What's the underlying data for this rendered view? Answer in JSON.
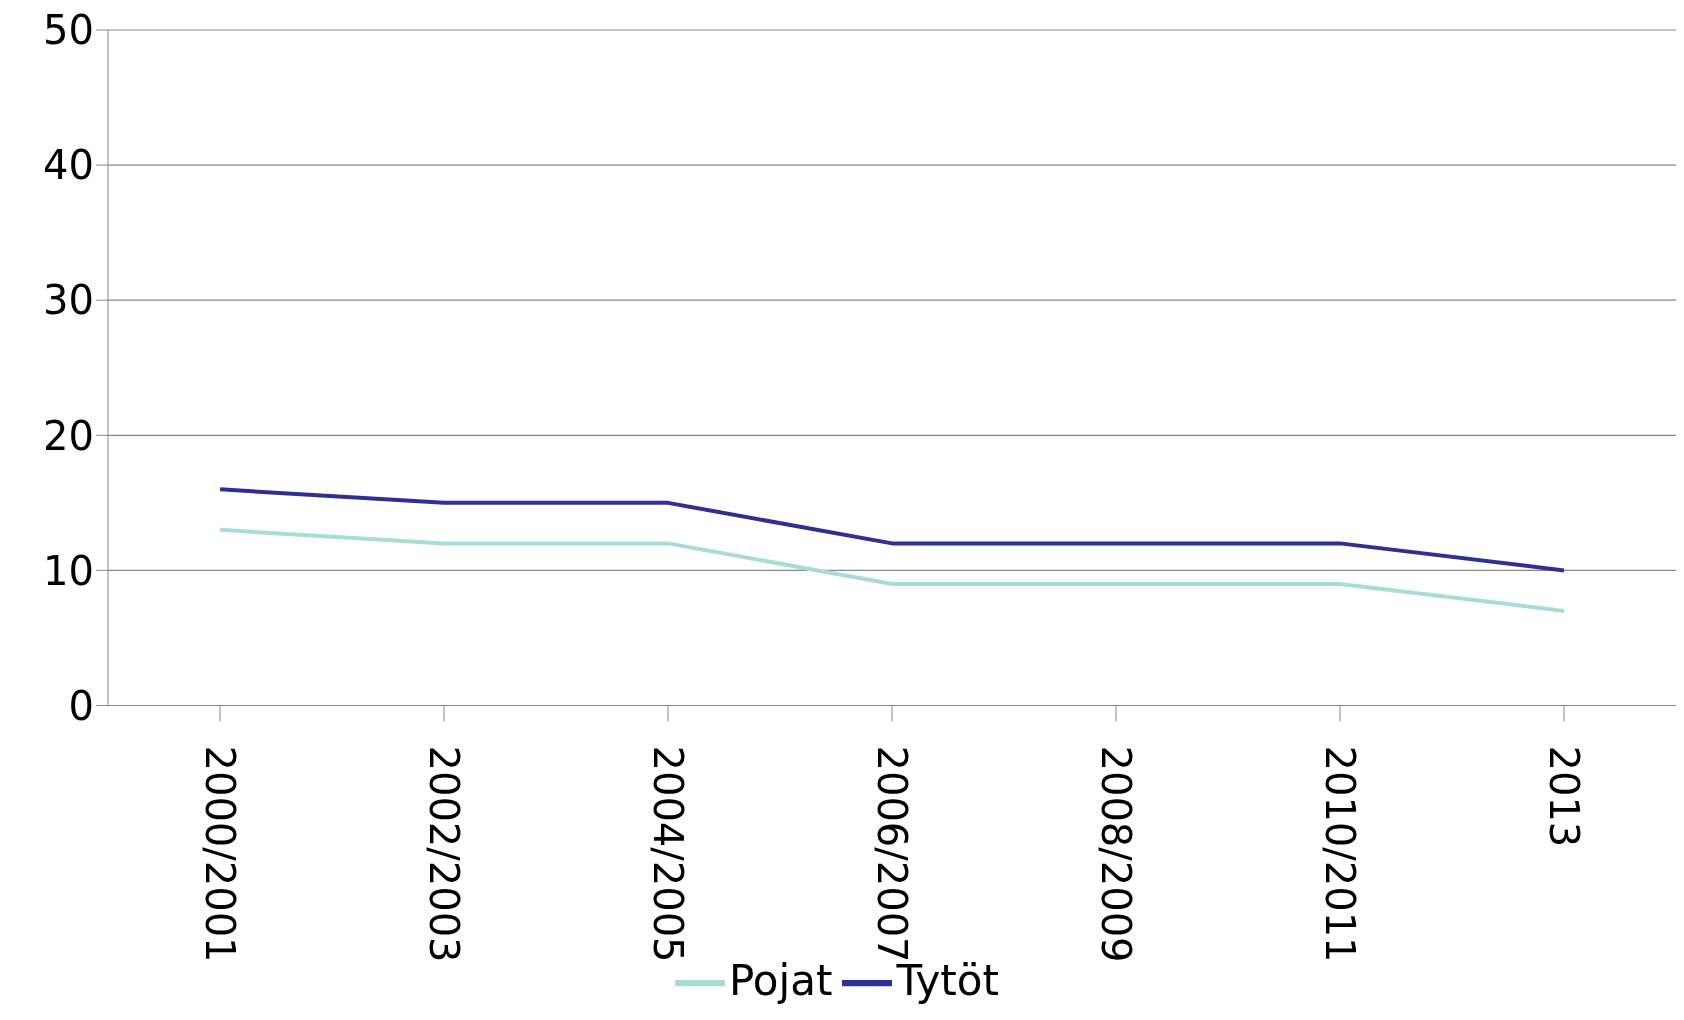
{
  "chart_data": {
    "type": "line",
    "categories": [
      "2000/2001",
      "2002/2003",
      "2004/2005",
      "2006/2007",
      "2008/2009",
      "2010/2011",
      "2013"
    ],
    "series": [
      {
        "name": "Pojat",
        "color": "#a8dcd9",
        "values": [
          13,
          12,
          12,
          9,
          9,
          9,
          7
        ]
      },
      {
        "name": "Tytöt",
        "color": "#2e3192",
        "values": [
          16,
          15,
          15,
          12,
          12,
          12,
          10
        ]
      }
    ],
    "ylim": [
      0,
      50
    ],
    "yticks": [
      0,
      10,
      20,
      30,
      40,
      50
    ],
    "grid": "y",
    "legend": "bottom"
  }
}
